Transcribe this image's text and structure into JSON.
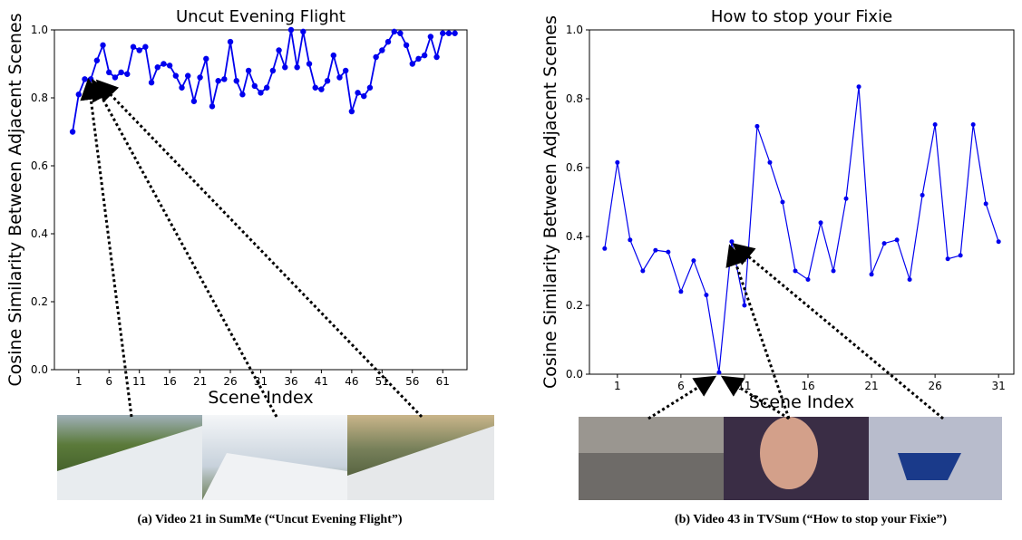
{
  "chart_data": [
    {
      "type": "line",
      "title": "Uncut Evening Flight",
      "x_label": "Scene Index",
      "y_label": "Cosine Similarity Between Adjacent Scenes",
      "caption": "(a) Video 21 in SumMe (“Uncut Evening Flight”)",
      "x": [
        0,
        1,
        2,
        3,
        4,
        5,
        6,
        7,
        8,
        9,
        10,
        11,
        12,
        13,
        14,
        15,
        16,
        17,
        18,
        19,
        20,
        21,
        22,
        23,
        24,
        25,
        26,
        27,
        28,
        29,
        30,
        31,
        32,
        33,
        34,
        35,
        36,
        37,
        38,
        39,
        40,
        41,
        42,
        43,
        44,
        45,
        46,
        47,
        48,
        49,
        50,
        51,
        52,
        53,
        54,
        55,
        56,
        57,
        58,
        59,
        60,
        61,
        62,
        63
      ],
      "series": [
        {
          "color": "#0000ee",
          "values": [
            0.7,
            0.81,
            0.855,
            0.855,
            0.91,
            0.955,
            0.875,
            0.86,
            0.875,
            0.87,
            0.95,
            0.94,
            0.95,
            0.845,
            0.89,
            0.9,
            0.895,
            0.865,
            0.83,
            0.865,
            0.79,
            0.86,
            0.915,
            0.775,
            0.85,
            0.855,
            0.965,
            0.85,
            0.81,
            0.88,
            0.835,
            0.815,
            0.83,
            0.88,
            0.94,
            0.89,
            1.0,
            0.89,
            0.995,
            0.9,
            0.83,
            0.825,
            0.85,
            0.925,
            0.86,
            0.88,
            0.76,
            0.815,
            0.805,
            0.83,
            0.92,
            0.94,
            0.965,
            0.995,
            0.99,
            0.955,
            0.9,
            0.915,
            0.925,
            0.98,
            0.92,
            0.99,
            0.99,
            0.99
          ]
        }
      ],
      "xlim": [
        -3,
        65
      ],
      "xticks": [
        1,
        6,
        11,
        16,
        21,
        26,
        31,
        36,
        41,
        46,
        51,
        56,
        61
      ],
      "ylim": [
        0,
        1
      ],
      "yticks": [
        {
          "value": 0,
          "label": "0.0"
        },
        {
          "value": 0.2,
          "label": "0.2"
        },
        {
          "value": 0.4,
          "label": "0.4"
        },
        {
          "value": 0.6,
          "label": "0.6"
        },
        {
          "value": 0.8,
          "label": "0.8"
        },
        {
          "value": 1,
          "label": "1.0"
        }
      ],
      "markers": true
    },
    {
      "type": "line",
      "title": "How to stop your Fixie",
      "x_label": "Scene Index",
      "y_label": "Cosine Similarity Between Adjacent Scenes",
      "caption": "(b) Video 43 in TVSum (“How to stop your Fixie”)",
      "x": [
        0,
        1,
        2,
        3,
        4,
        5,
        6,
        7,
        8,
        9,
        10,
        11,
        12,
        13,
        14,
        15,
        16,
        17,
        18,
        19,
        20,
        21,
        22,
        23,
        24,
        25,
        26,
        27,
        28,
        29,
        30,
        31
      ],
      "series": [
        {
          "color": "#0000ee",
          "values": [
            0.365,
            0.615,
            0.39,
            0.3,
            0.36,
            0.355,
            0.24,
            0.33,
            0.23,
            0.005,
            0.385,
            0.2,
            0.72,
            0.615,
            0.5,
            0.3,
            0.275,
            0.44,
            0.3,
            0.51,
            0.835,
            0.29,
            0.38,
            0.39,
            0.275,
            0.52,
            0.725,
            0.335,
            0.345,
            0.725,
            0.495,
            0.385
          ]
        }
      ],
      "xlim": [
        -1.2,
        32.2
      ],
      "xticks": [
        1,
        6,
        11,
        16,
        21,
        26,
        31
      ],
      "ylim": [
        0,
        1
      ],
      "yticks": [
        {
          "value": 0,
          "label": "0.0"
        },
        {
          "value": 0.2,
          "label": "0.2"
        },
        {
          "value": 0.4,
          "label": "0.4"
        },
        {
          "value": 0.6,
          "label": "0.6"
        },
        {
          "value": 0.8,
          "label": "0.8"
        },
        {
          "value": 1,
          "label": "1.0"
        }
      ],
      "markers": true
    }
  ]
}
